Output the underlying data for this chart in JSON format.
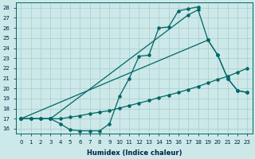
{
  "xlabel": "Humidex (Indice chaleur)",
  "xlim": [
    -0.5,
    23.5
  ],
  "ylim": [
    15.5,
    28.5
  ],
  "background_color": "#cce8e8",
  "grid_color": "#aacccc",
  "line_color": "#006666",
  "curve1_x": [
    0,
    1,
    2,
    3,
    4,
    5,
    6,
    7,
    8,
    9,
    10,
    11,
    12,
    13,
    14,
    15,
    16,
    17,
    18
  ],
  "curve1_y": [
    17.0,
    17.0,
    17.0,
    17.0,
    16.5,
    15.9,
    15.8,
    15.8,
    15.8,
    16.5,
    19.2,
    21.0,
    23.2,
    23.3,
    26.0,
    26.1,
    27.7,
    27.9,
    28.1
  ],
  "curve2_x": [
    0,
    3,
    17,
    18,
    19,
    20,
    21,
    22,
    23
  ],
  "curve2_y": [
    17.0,
    17.0,
    27.3,
    27.8,
    24.8,
    23.3,
    21.0,
    19.8,
    19.6
  ],
  "curve3_x": [
    0,
    1,
    2,
    3,
    4,
    5,
    6,
    7,
    8,
    9,
    10,
    11,
    12,
    13,
    14,
    15,
    16,
    17,
    18,
    19,
    20,
    21,
    22,
    23
  ],
  "curve3_y": [
    17.0,
    17.0,
    17.0,
    17.0,
    17.0,
    17.15,
    17.3,
    17.5,
    17.65,
    17.8,
    18.05,
    18.3,
    18.55,
    18.8,
    19.1,
    19.35,
    19.6,
    19.9,
    20.2,
    20.55,
    20.9,
    21.2,
    21.6,
    22.0
  ],
  "curve4_x": [
    0,
    19,
    20,
    21,
    22,
    23
  ],
  "curve4_y": [
    17.0,
    24.8,
    23.3,
    21.0,
    19.8,
    19.6
  ]
}
